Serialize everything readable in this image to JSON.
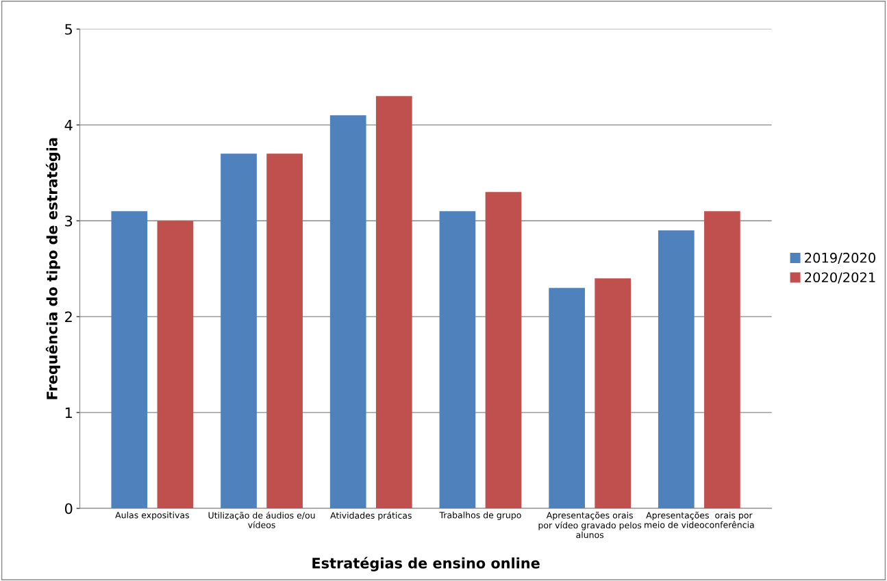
{
  "chart_data": {
    "type": "bar",
    "xlabel": "Estratégias de ensino online",
    "ylabel": "Frequência do tipo de estratégia",
    "categories": [
      "Aulas expositivas",
      "Utilização de áudios e/ou\nvídeos",
      "Atividades práticas",
      "Trabalhos de grupo",
      "Apresentações orais\npor vídeo gravado pelos\nalunos",
      "Apresentações  orais por\nmeio de videoconferência"
    ],
    "series": [
      {
        "name": "2019/2020",
        "color": "#4f81bd",
        "values": [
          3.1,
          3.7,
          4.1,
          3.1,
          2.3,
          2.9
        ]
      },
      {
        "name": "2020/2021",
        "color": "#c0504d",
        "values": [
          3.0,
          3.7,
          4.3,
          3.3,
          2.4,
          3.1
        ]
      }
    ],
    "ylim": [
      0,
      5
    ],
    "yticks": [
      0,
      1,
      2,
      3,
      4,
      5
    ],
    "grid": "y",
    "legend": "right"
  }
}
